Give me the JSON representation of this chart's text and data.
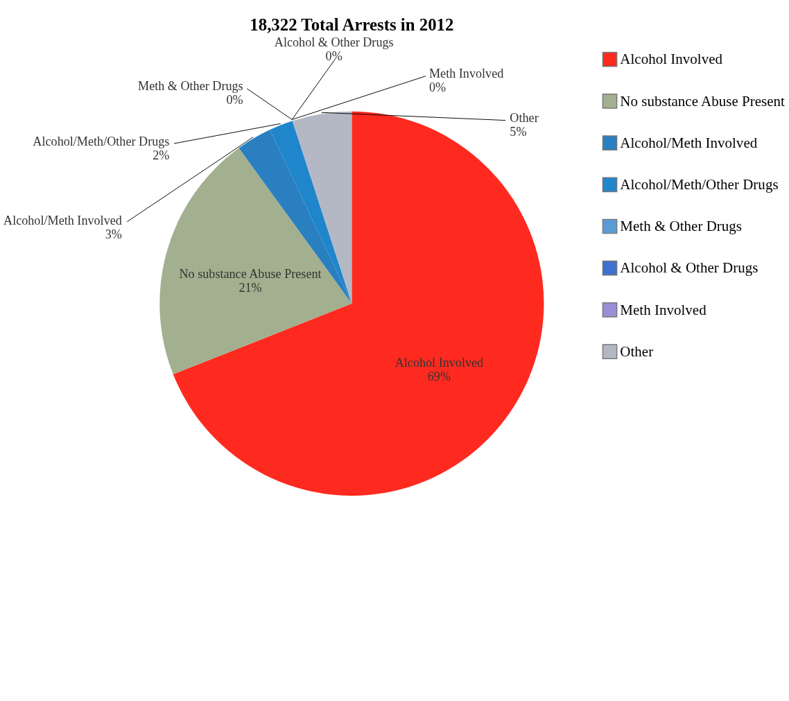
{
  "chart_data": {
    "type": "pie",
    "title": "18,322 Total Arrests in 2012",
    "categories": [
      "Alcohol Involved",
      "No substance Abuse Present",
      "Alcohol/Meth Involved",
      "Alcohol/Meth/Other Drugs",
      "Meth & Other Drugs",
      "Alcohol & Other Drugs",
      "Meth Involved",
      "Other"
    ],
    "values": [
      69,
      21,
      3,
      2,
      0,
      0,
      0,
      5
    ],
    "value_labels": [
      "69%",
      "21%",
      "3%",
      "2%",
      "0%",
      "0%",
      "0%",
      "5%"
    ],
    "colors": [
      "#ff2a1f",
      "#a3b08f",
      "#2a7fc0",
      "#1f86cc",
      "#5a9bd5",
      "#3e6fd1",
      "#9a8fd6",
      "#b4b8c4"
    ],
    "legend": "right"
  }
}
